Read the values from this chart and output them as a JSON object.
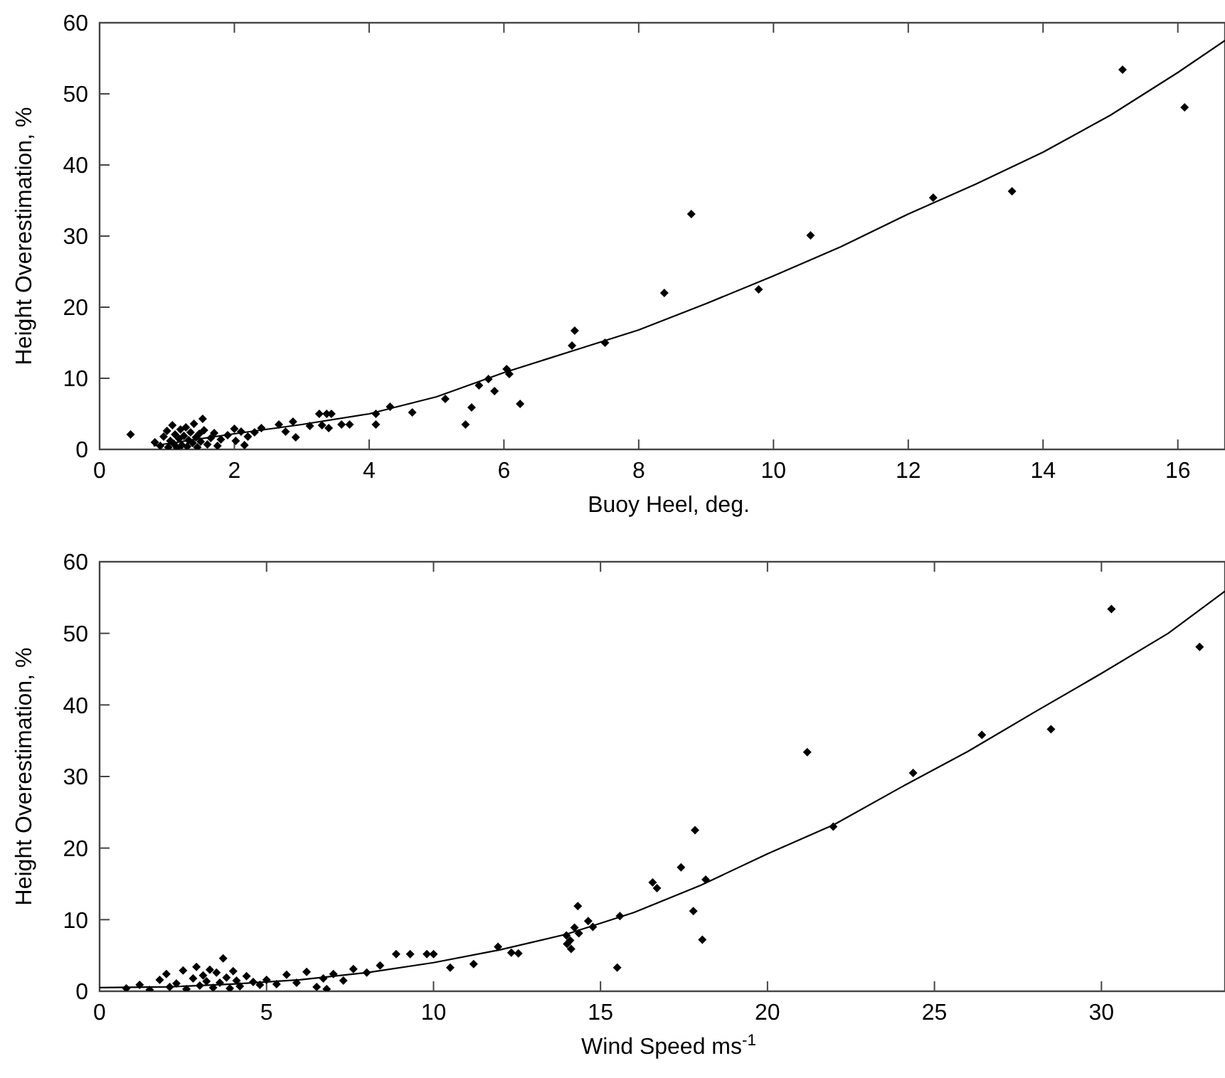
{
  "chart_data": [
    {
      "type": "scatter",
      "xlabel": "Buoy Heel, deg.",
      "ylabel": "Height Overestimation, %",
      "xlim": [
        0,
        16.7
      ],
      "ylim": [
        0,
        60
      ],
      "xticks": [
        0,
        2,
        4,
        6,
        8,
        10,
        12,
        14,
        16
      ],
      "yticks": [
        0,
        10,
        20,
        30,
        40,
        50,
        60
      ],
      "grid": false,
      "series": [
        {
          "color": "#000000",
          "marker": "diamond",
          "x": [
            0.46,
            0.82,
            0.9,
            0.95,
            1.0,
            1.02,
            1.05,
            1.08,
            1.1,
            1.12,
            1.15,
            1.18,
            1.2,
            1.22,
            1.25,
            1.28,
            1.3,
            1.32,
            1.35,
            1.38,
            1.4,
            1.43,
            1.45,
            1.48,
            1.5,
            1.53,
            1.55,
            1.6,
            1.65,
            1.7,
            1.75,
            1.8,
            1.9,
            2.0,
            2.02,
            2.1,
            2.15,
            2.2,
            2.3,
            2.4,
            2.66,
            2.76,
            2.87,
            2.91,
            3.12,
            3.26,
            3.3,
            3.37,
            3.4,
            3.44,
            3.59,
            3.71,
            4.1,
            4.1,
            4.31,
            4.64,
            5.13,
            5.43,
            5.52,
            5.63,
            5.77,
            5.86,
            6.04,
            6.08,
            6.24,
            7.01,
            7.05,
            7.5,
            8.38,
            8.78,
            9.78,
            10.55,
            12.37,
            13.54,
            15.18,
            16.1
          ],
          "values": [
            2.1,
            1.0,
            0.5,
            1.8,
            2.6,
            0.3,
            1.2,
            3.4,
            0.8,
            2.1,
            0.2,
            1.5,
            2.8,
            0.6,
            1.9,
            3.1,
            0.4,
            1.3,
            2.4,
            0.9,
            3.6,
            1.7,
            0.3,
            2.2,
            1.1,
            4.3,
            2.7,
            0.7,
            1.6,
            2.3,
            0.5,
            1.4,
            2.0,
            2.9,
            1.2,
            2.5,
            0.6,
            1.8,
            2.4,
            3.0,
            3.5,
            2.5,
            3.9,
            1.7,
            3.3,
            5.0,
            3.4,
            5.0,
            3.0,
            5.0,
            3.5,
            3.5,
            5.0,
            3.5,
            6.0,
            5.2,
            7.1,
            3.5,
            5.9,
            9.0,
            9.9,
            8.2,
            11.3,
            10.6,
            6.4,
            14.6,
            16.7,
            15.0,
            22.0,
            33.1,
            22.5,
            30.1,
            35.4,
            36.3,
            53.4,
            48.1
          ]
        },
        {
          "type": "line",
          "color": "#000000",
          "marker": "none",
          "line_style": "solid",
          "x": [
            0.8,
            1,
            2,
            3,
            4,
            5,
            6,
            7,
            8,
            9,
            10,
            11,
            12,
            13,
            14,
            15,
            16,
            16.7
          ],
          "values": [
            0.5,
            0.8,
            2.2,
            3.5,
            5.0,
            7.4,
            10.8,
            13.8,
            16.8,
            20.5,
            24.4,
            28.5,
            33.1,
            37.3,
            41.8,
            47.0,
            53.0,
            57.5
          ]
        }
      ]
    },
    {
      "type": "scatter",
      "xlabel": "Wind Speed ms$^{-1}$",
      "ylabel": "Height Overestimation, %",
      "xlim": [
        0,
        33.7
      ],
      "ylim": [
        0,
        60
      ],
      "xticks": [
        0,
        5,
        10,
        15,
        20,
        25,
        30
      ],
      "yticks": [
        0,
        10,
        20,
        30,
        40,
        50,
        60
      ],
      "grid": false,
      "series": [
        {
          "color": "#000000",
          "marker": "diamond",
          "x": [
            0.8,
            1.2,
            1.5,
            1.8,
            2.0,
            2.1,
            2.3,
            2.5,
            2.6,
            2.8,
            2.9,
            3.0,
            3.1,
            3.2,
            3.3,
            3.4,
            3.5,
            3.6,
            3.7,
            3.8,
            3.9,
            4.0,
            4.1,
            4.2,
            4.4,
            4.6,
            4.8,
            5.0,
            5.3,
            5.6,
            5.9,
            6.2,
            6.5,
            6.7,
            6.8,
            7.0,
            7.3,
            7.6,
            8.0,
            8.4,
            8.88,
            9.3,
            9.8,
            10.0,
            10.5,
            11.2,
            11.93,
            12.33,
            12.54,
            13.98,
            14.0,
            14.09,
            14.12,
            14.22,
            14.32,
            14.35,
            14.63,
            14.77,
            15.5,
            15.58,
            16.56,
            16.69,
            17.41,
            17.78,
            17.83,
            18.05,
            18.15,
            21.19,
            21.97,
            24.36,
            26.42,
            28.49,
            30.3,
            32.94
          ],
          "values": [
            0.4,
            0.9,
            0.2,
            1.6,
            2.4,
            0.6,
            1.1,
            2.9,
            0.3,
            1.8,
            3.4,
            0.8,
            2.2,
            1.4,
            3.0,
            0.5,
            2.6,
            1.2,
            4.6,
            1.9,
            0.4,
            2.8,
            1.5,
            0.7,
            2.1,
            1.3,
            0.9,
            1.6,
            1.0,
            2.3,
            1.2,
            2.7,
            0.6,
            1.8,
            0.3,
            2.4,
            1.5,
            3.1,
            2.6,
            3.6,
            5.2,
            5.2,
            5.2,
            5.2,
            3.3,
            3.8,
            6.2,
            5.4,
            5.3,
            7.8,
            6.6,
            7.1,
            5.9,
            8.9,
            11.9,
            8.1,
            9.8,
            9.0,
            3.3,
            10.5,
            15.2,
            14.4,
            17.3,
            11.2,
            22.5,
            7.2,
            15.6,
            33.4,
            23.0,
            30.5,
            35.8,
            36.6,
            53.4,
            48.1
          ]
        },
        {
          "type": "line",
          "color": "#000000",
          "marker": "none",
          "line_style": "solid",
          "x": [
            0,
            2,
            4,
            6,
            8,
            10,
            12,
            14,
            16,
            18,
            20,
            22,
            24,
            26,
            28,
            30,
            32,
            33.7
          ],
          "values": [
            0.5,
            0.6,
            1.0,
            1.6,
            2.6,
            4.0,
            5.8,
            8.0,
            11.0,
            14.8,
            19.2,
            23.3,
            28.5,
            33.5,
            39.0,
            44.4,
            50.0,
            55.9
          ]
        }
      ]
    }
  ]
}
